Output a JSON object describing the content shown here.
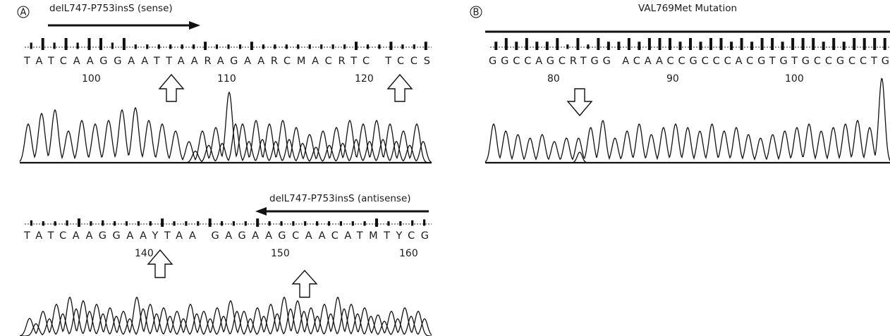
{
  "panels": [
    {
      "id": "A-top",
      "letter": "A",
      "title": "delL747-P753insS (sense)",
      "sequence": "TATCAAGGAATTAARAGAARCMACRTC TCCS",
      "positions": [
        "100",
        "110",
        "120"
      ]
    },
    {
      "id": "A-bottom",
      "title": "delL747-P753insS (antisense)",
      "sequence": "TATCAAGGAAYTAA GAGAAGCAACATMTYCG",
      "positions": [
        "140",
        "150",
        "160"
      ]
    },
    {
      "id": "B",
      "letter": "B",
      "title": "VAL769Met  Mutation",
      "sequence": "GGCCAGCRTGG ACAACCGCCCACGTGTGCCGCCTG",
      "positions": [
        "80",
        "90",
        "100"
      ]
    }
  ]
}
